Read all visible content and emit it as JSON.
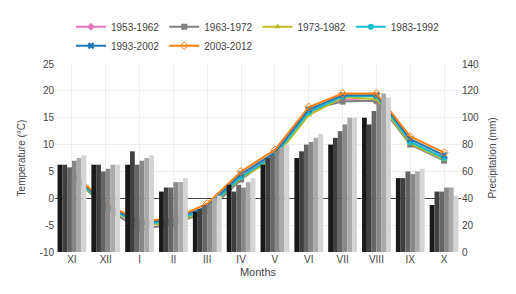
{
  "chart_data": {
    "type": "bar",
    "xlabel": "Months",
    "ylabel": "Temperature (°C)",
    "y2label": "Precipitation (mm)",
    "categories": [
      "XI",
      "XII",
      "I",
      "II",
      "III",
      "IV",
      "V",
      "VI",
      "VII",
      "VIII",
      "IX",
      "X"
    ],
    "series": [
      {
        "type": "bar",
        "axis": "y2",
        "color": "#1a1a1a",
        "values": [
          65,
          65,
          65,
          45,
          30,
          50,
          65,
          70,
          80,
          100,
          55,
          35
        ]
      },
      {
        "type": "bar",
        "axis": "y2",
        "color": "#404040",
        "values": [
          65,
          65,
          75,
          48,
          32,
          45,
          70,
          75,
          85,
          95,
          55,
          45
        ]
      },
      {
        "type": "bar",
        "axis": "y2",
        "color": "#666666",
        "values": [
          63,
          60,
          65,
          48,
          35,
          50,
          72,
          80,
          90,
          105,
          60,
          45
        ]
      },
      {
        "type": "bar",
        "axis": "y2",
        "color": "#888888",
        "values": [
          68,
          62,
          68,
          52,
          35,
          48,
          75,
          82,
          95,
          110,
          58,
          48
        ]
      },
      {
        "type": "bar",
        "axis": "y2",
        "color": "#aaaaaa",
        "values": [
          70,
          65,
          70,
          52,
          40,
          52,
          78,
          85,
          100,
          118,
          60,
          48
        ]
      },
      {
        "type": "bar",
        "axis": "y2",
        "color": "#d4d4d4",
        "values": [
          72,
          65,
          72,
          55,
          42,
          55,
          80,
          88,
          100,
          115,
          62,
          42
        ]
      },
      {
        "type": "line",
        "name": "1953-1962",
        "marker": "diamond",
        "values": [
          4.5,
          -1.5,
          -4.5,
          -4.5,
          -2.0,
          4.0,
          8.5,
          16.0,
          18.5,
          18.0,
          10.5,
          7.5
        ]
      },
      {
        "type": "line",
        "name": "1963-1972",
        "marker": "square",
        "values": [
          4.2,
          -1.8,
          -5.8,
          -4.8,
          -2.5,
          3.5,
          8.0,
          16.5,
          18.0,
          18.2,
          10.0,
          7.0
        ]
      },
      {
        "type": "line",
        "name": "1973-1982",
        "marker": "triangle-up",
        "values": [
          4.3,
          -1.6,
          -5.0,
          -4.6,
          -2.2,
          3.8,
          7.5,
          15.5,
          18.8,
          18.5,
          10.2,
          7.2
        ]
      },
      {
        "type": "line",
        "name": "1983-1992",
        "marker": "circle",
        "values": [
          4.5,
          -1.5,
          -4.8,
          -4.3,
          -2.0,
          4.0,
          8.0,
          16.0,
          19.0,
          19.0,
          10.5,
          7.5
        ]
      },
      {
        "type": "line",
        "name": "1993-2002",
        "marker": "x",
        "values": [
          4.8,
          -1.3,
          -4.5,
          -4.0,
          -1.5,
          4.5,
          8.5,
          16.5,
          19.2,
          19.2,
          11.0,
          8.0
        ]
      },
      {
        "type": "line",
        "name": "2003-2012",
        "marker": "diamond-open",
        "values": [
          5.0,
          -1.0,
          -4.2,
          -3.8,
          -1.0,
          5.0,
          9.0,
          17.0,
          19.5,
          19.5,
          11.5,
          8.5
        ]
      }
    ],
    "ylim": [
      -10,
      25
    ],
    "yticks": [
      -10,
      -5,
      0,
      5,
      10,
      15,
      20,
      25
    ],
    "y2lim": [
      0,
      140
    ],
    "y2ticks": [
      0,
      20,
      40,
      60,
      80,
      100,
      120,
      140
    ],
    "grid": true,
    "legend": "top"
  }
}
